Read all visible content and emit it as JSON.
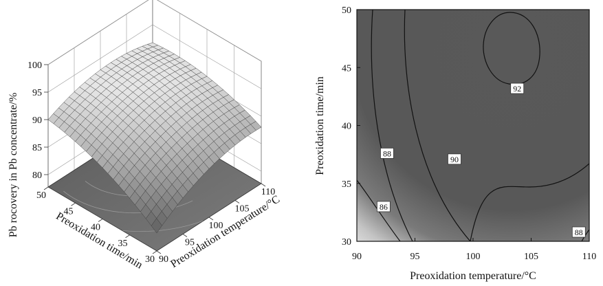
{
  "chart_data": [
    {
      "type": "surface3d",
      "title": "",
      "xlabel": "Preoxidation temperature/°C",
      "ylabel": "Preoxidation time/min",
      "zlabel": "Pb rocovery in Pb concentrate/%",
      "x_ticks": [
        "90",
        "95",
        "100",
        "105",
        "110"
      ],
      "y_ticks": [
        "30",
        "35",
        "40",
        "45",
        "50"
      ],
      "z_ticks": [
        "80",
        "85",
        "90",
        "95",
        "100"
      ],
      "xlim": [
        90,
        110
      ],
      "ylim": [
        30,
        50
      ],
      "zlim": [
        80,
        100
      ],
      "corner_values": [
        {
          "temperature": 90,
          "time": 30,
          "recovery": 81
        },
        {
          "temperature": 90,
          "time": 50,
          "recovery": 90
        },
        {
          "temperature": 110,
          "time": 30,
          "recovery": 88
        },
        {
          "temperature": 110,
          "time": 50,
          "recovery": 89.5
        }
      ],
      "peak": {
        "temperature": 103,
        "time": 46,
        "recovery": 92.5
      },
      "colors": {
        "surface_high": "#e6e6e6",
        "surface_low": "#555555",
        "floor": "#6a6a6a",
        "grid": "#8c8c8c"
      }
    },
    {
      "type": "contour",
      "title": "",
      "xlabel": "Preoxidation temperature/°C",
      "ylabel": "Preoxidation time/min",
      "x_ticks": [
        "90",
        "95",
        "100",
        "105",
        "110"
      ],
      "y_ticks": [
        "30",
        "35",
        "40",
        "45",
        "50"
      ],
      "xlim": [
        90,
        110
      ],
      "ylim": [
        30,
        50
      ],
      "contour_levels": [
        "86",
        "88",
        "90",
        "92",
        "88"
      ],
      "label_positions": [
        {
          "level": 86,
          "temperature": 92.3,
          "time": 33.0
        },
        {
          "level": 88,
          "temperature": 92.6,
          "time": 37.6
        },
        {
          "level": 90,
          "temperature": 98.4,
          "time": 37.1
        },
        {
          "level": 92,
          "temperature": 103.8,
          "time": 43.2
        },
        {
          "level": 88,
          "temperature": 109.1,
          "time": 30.8
        }
      ],
      "colors": {
        "high": "#555555",
        "low": "#f2f2f2",
        "lines": "#111111"
      }
    }
  ]
}
